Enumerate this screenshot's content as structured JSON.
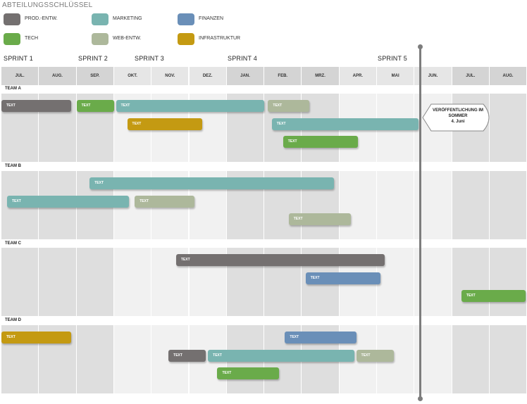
{
  "legend": {
    "title": "ABTEILUNGSSCHLÜSSEL",
    "items": [
      {
        "label": "PROD.-ENTW.",
        "color": "#747070"
      },
      {
        "label": "MARKETING",
        "color": "#79b4b0"
      },
      {
        "label": "FINANZEN",
        "color": "#6a8fb8"
      },
      {
        "label": "TECH",
        "color": "#6aab4a"
      },
      {
        "label": "WEB-ENTW.",
        "color": "#adb89b"
      },
      {
        "label": "INFRASTRUKTUR",
        "color": "#c49a12"
      }
    ]
  },
  "sprints": [
    "SPRINT 1",
    "SPRINT 2",
    "SPRINT 3",
    "SPRINT 4",
    "SPRINT 5"
  ],
  "months": [
    "JUL.",
    "AUG.",
    "SEP.",
    "OKT.",
    "NOV.",
    "DEZ.",
    "JAN.",
    "FEB.",
    "MRZ.",
    "APR.",
    "MAI",
    "JUN.",
    "JUL.",
    "AUG."
  ],
  "teams": [
    {
      "label": "TEAM A",
      "bars": [
        {
          "text": "TEXT",
          "dept": "PROD.-ENTW.",
          "start": 0.0,
          "end": 1.85,
          "row": 0
        },
        {
          "text": "TEXT",
          "dept": "TECH",
          "start": 2.0,
          "end": 3.0,
          "row": 0
        },
        {
          "text": "TEXT",
          "dept": "MARKETING",
          "start": 3.05,
          "end": 7.0,
          "row": 0
        },
        {
          "text": "TEXT",
          "dept": "WEB-ENTW.",
          "start": 7.1,
          "end": 8.2,
          "row": 0
        },
        {
          "text": "TEXT",
          "dept": "INFRASTRUKTUR",
          "start": 3.35,
          "end": 5.35,
          "row": 1
        },
        {
          "text": "TEXT",
          "dept": "MARKETING",
          "start": 7.2,
          "end": 11.1,
          "row": 1
        },
        {
          "text": "TEXT",
          "dept": "TECH",
          "start": 7.5,
          "end": 9.5,
          "row": 2
        }
      ]
    },
    {
      "label": "TEAM B",
      "bars": [
        {
          "text": "TEXT",
          "dept": "MARKETING",
          "start": 2.35,
          "end": 8.85,
          "row": 0
        },
        {
          "text": "TEXT",
          "dept": "MARKETING",
          "start": 0.15,
          "end": 3.4,
          "row": 1
        },
        {
          "text": "TEXT",
          "dept": "WEB-ENTW.",
          "start": 3.55,
          "end": 5.15,
          "row": 1
        },
        {
          "text": "TEXT",
          "dept": "WEB-ENTW.",
          "start": 7.65,
          "end": 9.3,
          "row": 2
        }
      ]
    },
    {
      "label": "TEAM C",
      "bars": [
        {
          "text": "TEXT",
          "dept": "PROD.-ENTW.",
          "start": 4.65,
          "end": 10.2,
          "row": 0
        },
        {
          "text": "TEXT",
          "dept": "FINANZEN",
          "start": 8.1,
          "end": 10.1,
          "row": 1
        },
        {
          "text": "TEXT",
          "dept": "TECH",
          "start": 12.25,
          "end": 14.0,
          "row": 2
        }
      ]
    },
    {
      "label": "TEAM D",
      "bars": [
        {
          "text": "TEXT",
          "dept": "INFRASTRUKTUR",
          "start": 0.0,
          "end": 1.85,
          "row": 0
        },
        {
          "text": "TEXT",
          "dept": "FINANZEN",
          "start": 7.55,
          "end": 9.45,
          "row": 0
        },
        {
          "text": "TEXT",
          "dept": "PROD.-ENTW.",
          "start": 4.45,
          "end": 5.45,
          "row": 1
        },
        {
          "text": "TEXT",
          "dept": "MARKETING",
          "start": 5.5,
          "end": 9.4,
          "row": 1
        },
        {
          "text": "TEXT",
          "dept": "WEB-ENTW.",
          "start": 9.45,
          "end": 10.45,
          "row": 1
        },
        {
          "text": "TEXT",
          "dept": "TECH",
          "start": 5.75,
          "end": 7.4,
          "row": 2
        }
      ]
    }
  ],
  "milestone": {
    "title": "VERÖFFENTLICHUNG IM SOMMER",
    "date": "4. Juni"
  }
}
